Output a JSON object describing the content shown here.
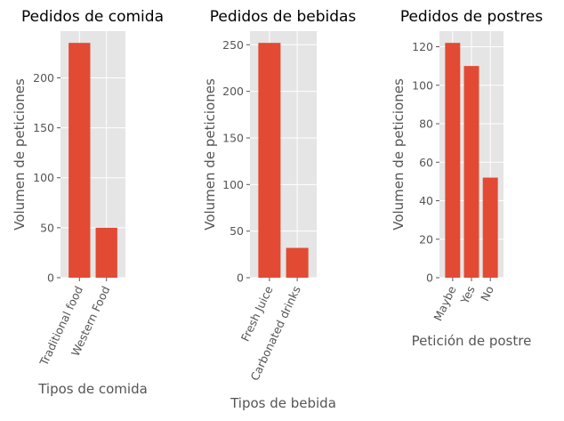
{
  "chart_data": [
    {
      "type": "bar",
      "title": "Pedidos de comida",
      "xlabel": "Tipos de comida",
      "ylabel": "Volumen de peticiones",
      "categories": [
        "Traditional food",
        "Western Food"
      ],
      "values": [
        235,
        50
      ],
      "yticks": [
        0,
        50,
        100,
        150,
        200
      ],
      "ylim": [
        0,
        246.75
      ],
      "bar_color": "#e24a33",
      "grid": true,
      "tick_rotation": 65
    },
    {
      "type": "bar",
      "title": "Pedidos de bebidas",
      "xlabel": "Tipos de bebida",
      "ylabel": "Volumen de peticiones",
      "categories": [
        "Fresh Juice",
        "Carbonated drinks"
      ],
      "values": [
        252,
        32
      ],
      "yticks": [
        0,
        50,
        100,
        150,
        200,
        250
      ],
      "ylim": [
        0,
        264.6
      ],
      "bar_color": "#e24a33",
      "grid": true,
      "tick_rotation": 65
    },
    {
      "type": "bar",
      "title": "Pedidos de postres",
      "xlabel": "Petición de postre",
      "ylabel": "Volumen de peticiones",
      "categories": [
        "Maybe",
        "Yes",
        "No"
      ],
      "values": [
        122,
        110,
        52
      ],
      "yticks": [
        0,
        20,
        40,
        60,
        80,
        100,
        120
      ],
      "ylim": [
        0,
        128.1
      ],
      "bar_color": "#e24a33",
      "grid": true,
      "tick_rotation": 65
    }
  ]
}
